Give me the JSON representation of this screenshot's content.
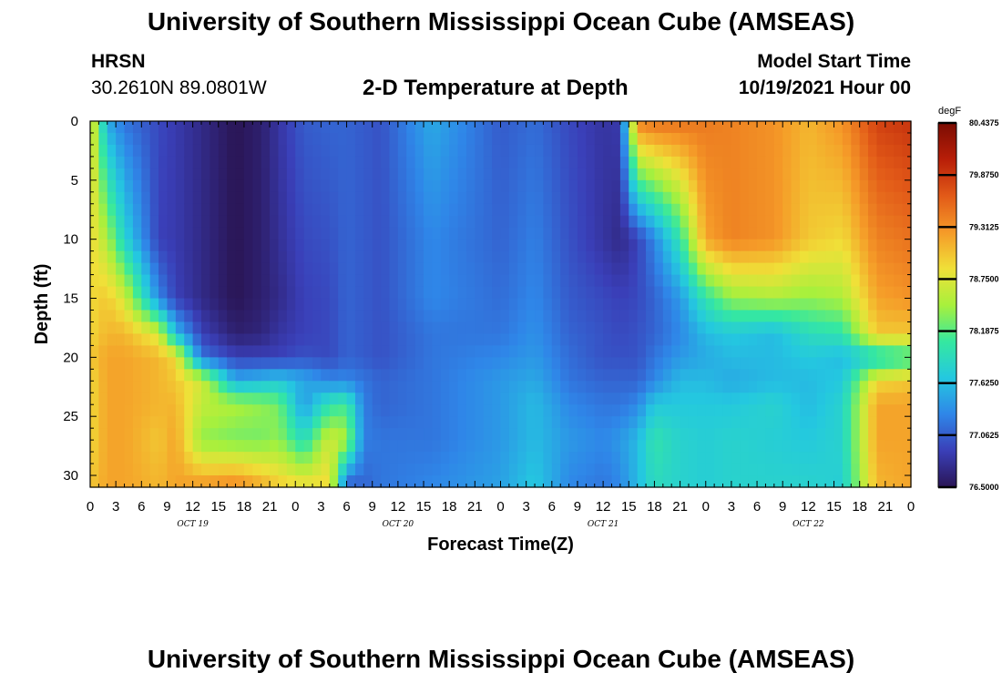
{
  "header": {
    "title": "University of Southern Mississippi Ocean Cube (AMSEAS)",
    "station_name": "HRSN",
    "station_coords": "30.2610N  89.0801W",
    "plot_title": "2-D Temperature at Depth",
    "model_start_label": "Model Start Time",
    "model_start_value": "10/19/2021 Hour 00"
  },
  "footer": {
    "title": "University of Southern Mississippi Ocean Cube (AMSEAS)"
  },
  "chart_data": {
    "type": "heatmap",
    "title": "2-D Temperature at Depth",
    "xlabel": "Forecast Time(Z)",
    "ylabel": "Depth (ft)",
    "x_unit": "hours since 10/19/2021 00Z",
    "xlim": [
      0,
      96
    ],
    "ylim": [
      31,
      0
    ],
    "x_tick_labels": [
      "0",
      "3",
      "6",
      "9",
      "12",
      "15",
      "18",
      "21",
      "0",
      "3",
      "6",
      "9",
      "12",
      "15",
      "18",
      "21",
      "0",
      "3",
      "6",
      "9",
      "12",
      "15",
      "18",
      "21",
      "0",
      "3",
      "6",
      "9",
      "12",
      "15",
      "18",
      "21",
      "0"
    ],
    "y_ticks": [
      0,
      5,
      10,
      15,
      20,
      25,
      30
    ],
    "day_labels": [
      {
        "label": "OCT 19",
        "hour": 12
      },
      {
        "label": "OCT 20",
        "hour": 36
      },
      {
        "label": "OCT 21",
        "hour": 60
      },
      {
        "label": "OCT 22",
        "hour": 84
      }
    ],
    "colorbar": {
      "unit": "degF",
      "min": 76.5,
      "max": 80.4375,
      "tick_labels": [
        "80.4375",
        "79.8750",
        "79.3125",
        "78.7500",
        "78.1875",
        "77.6250",
        "77.0625",
        "76.5000"
      ],
      "colors": [
        "#2a1555",
        "#3a3fb8",
        "#2f86e8",
        "#24c8e0",
        "#35e8a0",
        "#a8f03c",
        "#f0e038",
        "#f59a28",
        "#e25a18",
        "#b81e08",
        "#7a0c02"
      ]
    },
    "field": {
      "depth_levels": [
        0,
        10,
        15,
        18,
        20,
        22,
        24,
        27,
        31
      ],
      "times": [
        0,
        2,
        4,
        8,
        10,
        13,
        17,
        20,
        22,
        25,
        28,
        30,
        32,
        34,
        40,
        48,
        52,
        56,
        60,
        62,
        64,
        66,
        69,
        72,
        75,
        80,
        84,
        88,
        92,
        96
      ],
      "temperature": [
        [
          78.9,
          78.9,
          78.9,
          78.9,
          79.0,
          78.9,
          78.9,
          78.9,
          79.0
        ],
        [
          77.5,
          78.5,
          79.0,
          79.1,
          79.2,
          79.2,
          79.2,
          79.2,
          79.2
        ],
        [
          77.2,
          77.8,
          78.7,
          79.1,
          79.2,
          79.2,
          79.2,
          79.2,
          79.2
        ],
        [
          76.95,
          76.9,
          77.3,
          78.7,
          79.1,
          79.1,
          79.1,
          79.0,
          79.1
        ],
        [
          76.85,
          76.85,
          76.9,
          77.6,
          78.9,
          79.0,
          79.1,
          79.2,
          79.2
        ],
        [
          76.7,
          76.7,
          76.7,
          76.9,
          77.2,
          78.7,
          78.6,
          78.4,
          79.3
        ],
        [
          76.5,
          76.5,
          76.5,
          76.6,
          76.9,
          77.5,
          78.5,
          78.3,
          79.4
        ],
        [
          76.6,
          76.6,
          76.6,
          76.65,
          76.9,
          77.6,
          78.4,
          78.3,
          79.2
        ],
        [
          76.8,
          76.75,
          76.7,
          76.8,
          76.9,
          77.7,
          78.3,
          78.4,
          79.0
        ],
        [
          77.05,
          76.95,
          76.9,
          76.9,
          77.0,
          77.5,
          77.4,
          77.9,
          78.9
        ],
        [
          77.1,
          77.0,
          76.95,
          76.95,
          76.95,
          77.3,
          78.0,
          78.7,
          78.9
        ],
        [
          77.1,
          77.1,
          77.1,
          77.1,
          77.1,
          77.3,
          78.1,
          78.5,
          77.0
        ],
        [
          77.05,
          77.05,
          77.05,
          77.05,
          77.05,
          77.2,
          77.25,
          77.25,
          77.1
        ],
        [
          77.0,
          77.0,
          77.0,
          77.0,
          77.0,
          77.1,
          77.1,
          77.2,
          77.2
        ],
        [
          77.5,
          77.3,
          77.3,
          77.2,
          77.2,
          77.2,
          77.2,
          77.2,
          77.3
        ],
        [
          77.05,
          77.1,
          77.15,
          77.2,
          77.3,
          77.4,
          77.4,
          77.4,
          77.45
        ],
        [
          77.15,
          77.25,
          77.3,
          77.35,
          77.4,
          77.5,
          77.6,
          77.6,
          77.7
        ],
        [
          76.95,
          77.0,
          77.05,
          77.1,
          77.15,
          77.2,
          77.3,
          77.4,
          77.3
        ],
        [
          76.8,
          76.8,
          76.95,
          77.0,
          77.0,
          77.1,
          77.2,
          77.3,
          77.2
        ],
        [
          76.85,
          76.7,
          76.9,
          76.95,
          77.0,
          77.1,
          77.2,
          77.4,
          77.3
        ],
        [
          79.4,
          76.9,
          76.95,
          77.0,
          77.0,
          77.1,
          77.3,
          77.6,
          77.6
        ],
        [
          79.5,
          77.3,
          77.1,
          77.1,
          77.2,
          77.3,
          77.7,
          78.0,
          77.9
        ],
        [
          79.5,
          78.0,
          77.4,
          77.3,
          77.4,
          77.6,
          77.7,
          77.8,
          77.8
        ],
        [
          79.45,
          79.2,
          78.0,
          77.6,
          77.5,
          77.6,
          77.7,
          77.75,
          77.75
        ],
        [
          79.4,
          79.4,
          78.4,
          77.7,
          77.6,
          77.5,
          77.7,
          77.8,
          77.8
        ],
        [
          79.3,
          79.3,
          78.5,
          77.6,
          77.6,
          77.6,
          77.8,
          77.75,
          77.8
        ],
        [
          79.1,
          79.0,
          78.4,
          77.9,
          77.7,
          77.6,
          77.6,
          77.7,
          77.8
        ],
        [
          79.3,
          78.9,
          78.5,
          78.0,
          77.6,
          77.7,
          77.8,
          77.8,
          77.75
        ],
        [
          79.8,
          79.4,
          79.2,
          79.0,
          77.8,
          78.9,
          79.2,
          79.2,
          79.1
        ],
        [
          79.9,
          79.5,
          79.3,
          79.0,
          78.0,
          79.0,
          79.2,
          79.2,
          79.2
        ]
      ]
    }
  }
}
